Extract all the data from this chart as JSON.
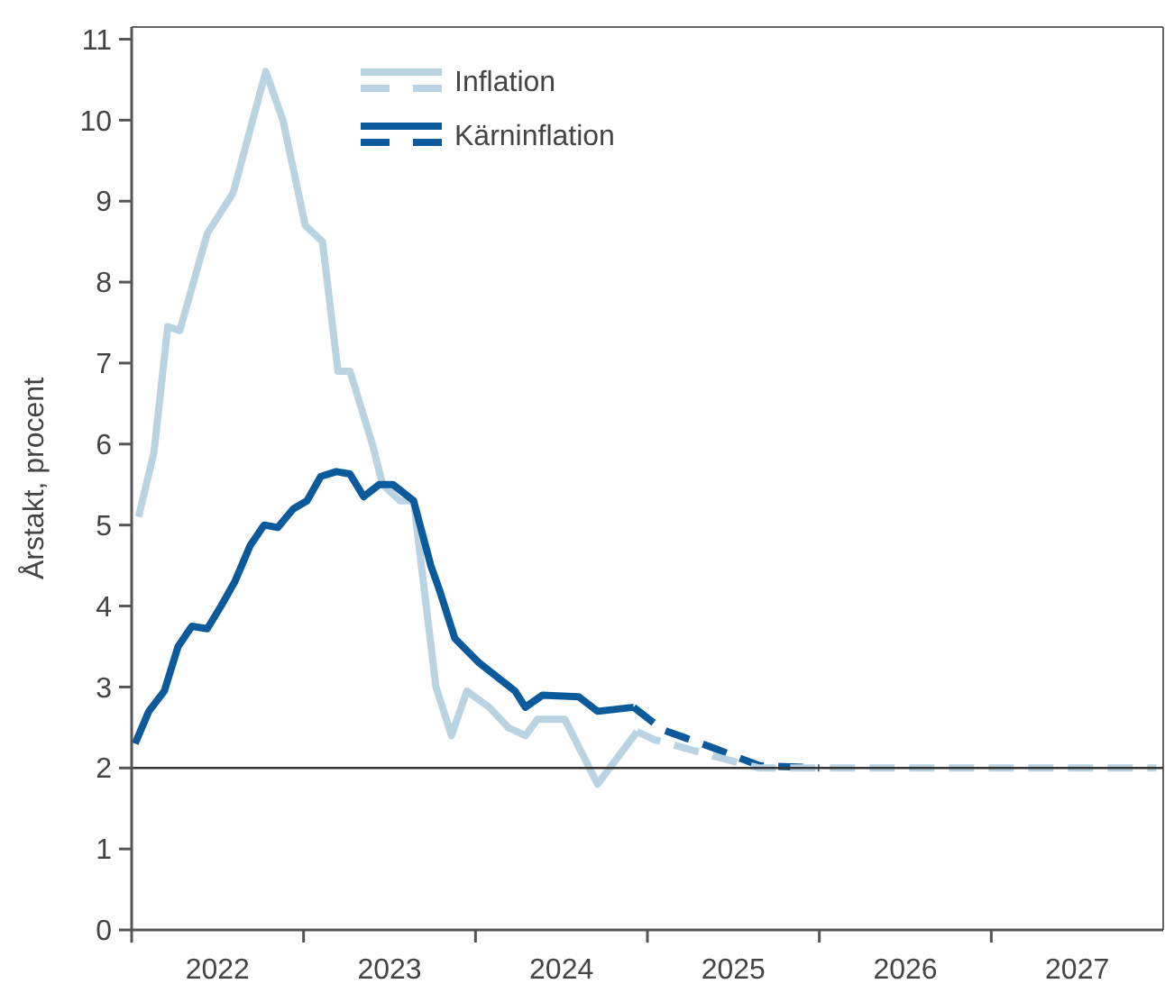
{
  "chart_data": {
    "type": "line",
    "ylabel": "Årstakt, procent",
    "xlim": [
      2022,
      2028
    ],
    "ylim": [
      0,
      11.15
    ],
    "xticks": [
      {
        "value": 2022,
        "label": null
      },
      {
        "value": 2022.5,
        "label": "2022"
      },
      {
        "value": 2023,
        "label": null
      },
      {
        "value": 2023.5,
        "label": "2023"
      },
      {
        "value": 2024,
        "label": null
      },
      {
        "value": 2024.5,
        "label": "2024"
      },
      {
        "value": 2025,
        "label": null
      },
      {
        "value": 2025.5,
        "label": "2025"
      },
      {
        "value": 2026,
        "label": null
      },
      {
        "value": 2026.5,
        "label": "2026"
      },
      {
        "value": 2027,
        "label": null
      },
      {
        "value": 2027.5,
        "label": "2027"
      }
    ],
    "yticks": [
      0,
      1,
      2,
      3,
      4,
      5,
      6,
      7,
      8,
      9,
      10,
      11
    ],
    "grid": false,
    "legend": "top",
    "marker": "none",
    "ref_lines": [
      {
        "axis": "y",
        "value": 2,
        "color": "#333333"
      }
    ],
    "series": [
      {
        "name": "Inflation",
        "color": "#b9d3e2",
        "line_style": "solid",
        "x": [
          2022.04,
          2022.13,
          2022.21,
          2022.28,
          2022.44,
          2022.59,
          2022.78,
          2022.88,
          2023.01,
          2023.11,
          2023.2,
          2023.27,
          2023.4,
          2023.46,
          2023.56,
          2023.64,
          2023.77,
          2023.86,
          2023.95,
          2024.08,
          2024.19,
          2024.29,
          2024.36,
          2024.52,
          2024.71,
          2024.94
        ],
        "values": [
          5.1,
          5.9,
          7.45,
          7.4,
          8.6,
          9.1,
          10.6,
          10.0,
          8.7,
          8.5,
          6.9,
          6.9,
          6.0,
          5.5,
          5.3,
          5.3,
          3.0,
          2.4,
          2.95,
          2.75,
          2.5,
          2.4,
          2.6,
          2.6,
          1.8,
          2.45
        ]
      },
      {
        "name": "Kärninflation",
        "color": "#0a5a9c",
        "line_style": "solid",
        "x": [
          2022.02,
          2022.1,
          2022.19,
          2022.27,
          2022.35,
          2022.44,
          2022.52,
          2022.6,
          2022.69,
          2022.77,
          2022.85,
          2022.94,
          2023.02,
          2023.1,
          2023.19,
          2023.27,
          2023.35,
          2023.44,
          2023.52,
          2023.64,
          2023.74,
          2023.79,
          2023.88,
          2024.02,
          2024.23,
          2024.29,
          2024.39,
          2024.6,
          2024.71,
          2024.92
        ],
        "values": [
          2.3,
          2.7,
          2.95,
          3.5,
          3.75,
          3.72,
          4.0,
          4.3,
          4.75,
          5.0,
          4.97,
          5.2,
          5.3,
          5.6,
          5.66,
          5.63,
          5.35,
          5.5,
          5.5,
          5.3,
          4.5,
          4.2,
          3.6,
          3.3,
          2.95,
          2.75,
          2.9,
          2.88,
          2.7,
          2.75
        ]
      },
      {
        "color": "#0a5a9c",
        "line_style": "dashed",
        "x": [
          2024.92,
          2025.09,
          2025.38,
          2025.65,
          2026.0
        ],
        "values": [
          2.75,
          2.47,
          2.25,
          2.03,
          2.0
        ]
      },
      {
        "color": "#b9d3e2",
        "line_style": "dashed",
        "x": [
          2024.94,
          2025.04,
          2025.38,
          2025.65,
          2026.0,
          2027.96
        ],
        "values": [
          2.45,
          2.35,
          2.15,
          2.0,
          2.0,
          2.0
        ]
      }
    ]
  }
}
